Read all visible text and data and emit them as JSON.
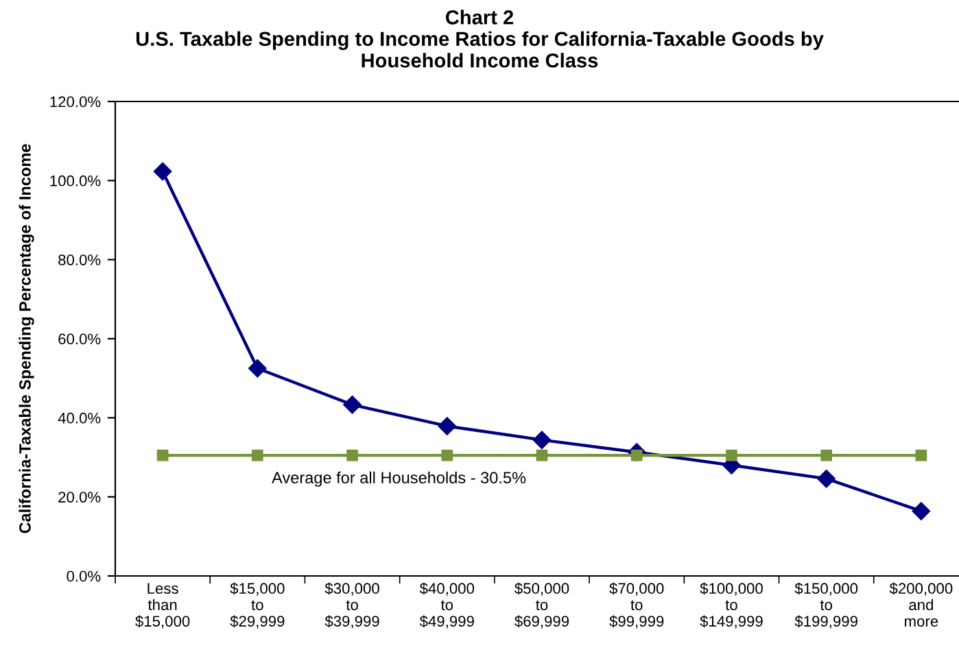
{
  "chart_data": {
    "type": "line",
    "title": "Chart 2\nU.S. Taxable Spending to Income Ratios for California-Taxable Goods by\nHousehold Income Class",
    "ylabel": "California-Taxable Spending Percentage of Income",
    "categories": [
      "Less\nthan\n$15,000",
      "$15,000\nto\n$29,999",
      "$30,000\nto\n$39,999",
      "$40,000\nto\n$49,999",
      "$50,000\nto\n$69,999",
      "$70,000\nto\n$99,999",
      "$100,000\nto\n$149,999",
      "$150,000\nto\n$199,999",
      "$200,000\nand\nmore"
    ],
    "series": [
      {
        "color": "#000080",
        "marker": "diamond",
        "values": [
          102.3,
          52.5,
          43.3,
          37.9,
          34.4,
          31.3,
          28.0,
          24.6,
          16.4
        ]
      },
      {
        "color": "#77933c",
        "marker": "square",
        "values": [
          30.5,
          30.5,
          30.5,
          30.5,
          30.5,
          30.5,
          30.5,
          30.5,
          30.5
        ]
      }
    ],
    "annotations": [
      "Average for all Households - 30.5%"
    ],
    "ylim": [
      0,
      120
    ],
    "yticks": [
      {
        "value": 0,
        "label": "0.0%"
      },
      {
        "value": 20,
        "label": "20.0%"
      },
      {
        "value": 40,
        "label": "40.0%"
      },
      {
        "value": 60,
        "label": "60.0%"
      },
      {
        "value": 80,
        "label": "80.0%"
      },
      {
        "value": 100,
        "label": "100.0%"
      },
      {
        "value": 120,
        "label": "120.0%"
      }
    ],
    "grid": false,
    "legend": false,
    "line_style": "solid"
  }
}
